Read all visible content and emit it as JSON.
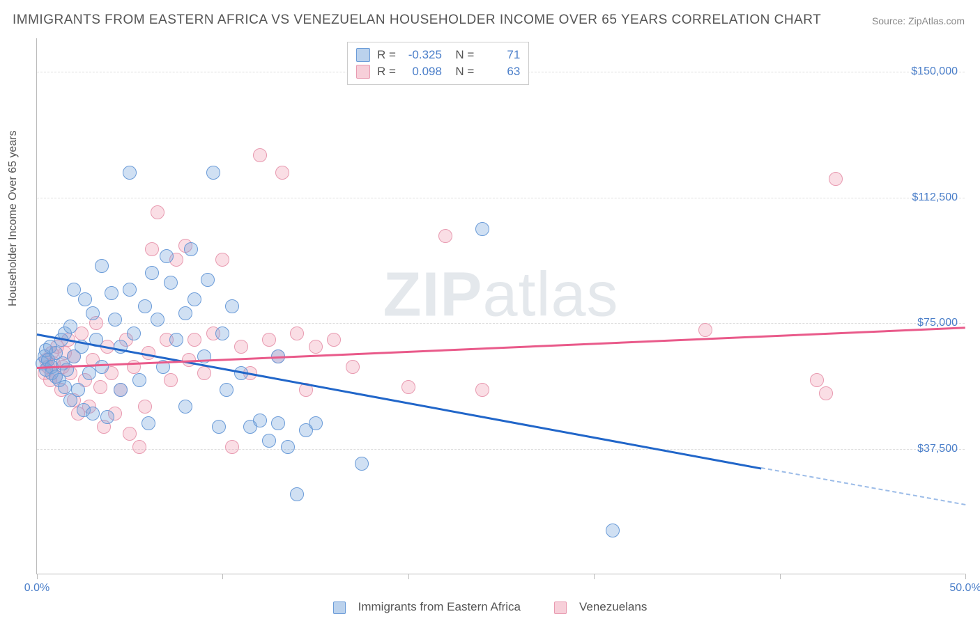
{
  "title": "IMMIGRANTS FROM EASTERN AFRICA VS VENEZUELAN HOUSEHOLDER INCOME OVER 65 YEARS CORRELATION CHART",
  "source": "Source: ZipAtlas.com",
  "ylabel": "Householder Income Over 65 years",
  "watermark_a": "ZIP",
  "watermark_b": "atlas",
  "chart": {
    "type": "scatter",
    "x_range": [
      0,
      50
    ],
    "y_range": [
      0,
      160000
    ],
    "x_ticks": [
      0,
      10,
      20,
      30,
      40,
      50
    ],
    "x_tick_labels": {
      "0": "0.0%",
      "50": "50.0%"
    },
    "y_gridlines": [
      37500,
      75000,
      112500,
      150000
    ],
    "y_tick_labels": [
      "$37,500",
      "$75,000",
      "$112,500",
      "$150,000"
    ],
    "background_color": "#ffffff",
    "grid_color": "#dddddd",
    "axis_color": "#bbbbbb",
    "tick_label_color": "#4a7ec9",
    "title_color": "#555555",
    "marker_radius": 10
  },
  "series": [
    {
      "name": "Immigrants from Eastern Africa",
      "color_fill": "rgba(120,165,220,0.35)",
      "color_stroke": "#6a9bd8",
      "line_color": "#2166c9",
      "R": "-0.325",
      "N": "71",
      "trend": {
        "x0": 0,
        "y0": 72000,
        "x1": 39,
        "y1": 32000,
        "dash_x1": 50,
        "dash_y1": 21000
      },
      "points": [
        [
          0.3,
          63000
        ],
        [
          0.4,
          65000
        ],
        [
          0.5,
          67000
        ],
        [
          0.5,
          61000
        ],
        [
          0.6,
          64000
        ],
        [
          0.7,
          68000
        ],
        [
          0.8,
          62000
        ],
        [
          0.8,
          60000
        ],
        [
          1.0,
          59000
        ],
        [
          1.0,
          66000
        ],
        [
          1.2,
          58000
        ],
        [
          1.3,
          70000
        ],
        [
          1.4,
          63000
        ],
        [
          1.5,
          56000
        ],
        [
          1.5,
          72000
        ],
        [
          1.6,
          61000
        ],
        [
          1.8,
          74000
        ],
        [
          1.8,
          52000
        ],
        [
          2.0,
          65000
        ],
        [
          2.0,
          85000
        ],
        [
          2.2,
          55000
        ],
        [
          2.4,
          68000
        ],
        [
          2.5,
          49000
        ],
        [
          2.6,
          82000
        ],
        [
          2.8,
          60000
        ],
        [
          3.0,
          78000
        ],
        [
          3.0,
          48000
        ],
        [
          3.2,
          70000
        ],
        [
          3.5,
          62000
        ],
        [
          3.5,
          92000
        ],
        [
          3.8,
          47000
        ],
        [
          4.0,
          84000
        ],
        [
          4.2,
          76000
        ],
        [
          4.5,
          55000
        ],
        [
          4.5,
          68000
        ],
        [
          5.0,
          120000
        ],
        [
          5.0,
          85000
        ],
        [
          5.2,
          72000
        ],
        [
          5.5,
          58000
        ],
        [
          5.8,
          80000
        ],
        [
          6.0,
          45000
        ],
        [
          6.2,
          90000
        ],
        [
          6.5,
          76000
        ],
        [
          6.8,
          62000
        ],
        [
          7.0,
          95000
        ],
        [
          7.2,
          87000
        ],
        [
          7.5,
          70000
        ],
        [
          8.0,
          78000
        ],
        [
          8.0,
          50000
        ],
        [
          8.3,
          97000
        ],
        [
          8.5,
          82000
        ],
        [
          9.0,
          65000
        ],
        [
          9.2,
          88000
        ],
        [
          9.5,
          120000
        ],
        [
          10.0,
          72000
        ],
        [
          10.2,
          55000
        ],
        [
          10.5,
          80000
        ],
        [
          11.0,
          60000
        ],
        [
          11.5,
          44000
        ],
        [
          12.0,
          46000
        ],
        [
          12.5,
          40000
        ],
        [
          13.0,
          45000
        ],
        [
          13.0,
          65000
        ],
        [
          13.5,
          38000
        ],
        [
          14.0,
          24000
        ],
        [
          14.5,
          43000
        ],
        [
          15.0,
          45000
        ],
        [
          17.5,
          33000
        ],
        [
          24.0,
          103000
        ],
        [
          31.0,
          13000
        ],
        [
          9.8,
          44000
        ]
      ]
    },
    {
      "name": "Venezuelans",
      "color_fill": "rgba(240,160,180,0.35)",
      "color_stroke": "#e89ab0",
      "line_color": "#e95a8a",
      "R": "0.098",
      "N": "63",
      "trend": {
        "x0": 0,
        "y0": 62000,
        "x1": 50,
        "y1": 74000
      },
      "points": [
        [
          0.4,
          60000
        ],
        [
          0.5,
          64000
        ],
        [
          0.6,
          62000
        ],
        [
          0.7,
          58000
        ],
        [
          0.8,
          66000
        ],
        [
          0.9,
          63000
        ],
        [
          1.0,
          59000
        ],
        [
          1.1,
          68000
        ],
        [
          1.3,
          55000
        ],
        [
          1.4,
          62000
        ],
        [
          1.5,
          66000
        ],
        [
          1.7,
          70000
        ],
        [
          1.8,
          60000
        ],
        [
          2.0,
          52000
        ],
        [
          2.0,
          65000
        ],
        [
          2.2,
          48000
        ],
        [
          2.4,
          72000
        ],
        [
          2.6,
          58000
        ],
        [
          2.8,
          50000
        ],
        [
          3.0,
          64000
        ],
        [
          3.2,
          75000
        ],
        [
          3.4,
          56000
        ],
        [
          3.6,
          44000
        ],
        [
          3.8,
          68000
        ],
        [
          4.0,
          60000
        ],
        [
          4.2,
          48000
        ],
        [
          4.5,
          55000
        ],
        [
          4.8,
          70000
        ],
        [
          5.0,
          42000
        ],
        [
          5.2,
          62000
        ],
        [
          5.5,
          38000
        ],
        [
          5.8,
          50000
        ],
        [
          6.0,
          66000
        ],
        [
          6.2,
          97000
        ],
        [
          6.5,
          108000
        ],
        [
          7.0,
          70000
        ],
        [
          7.2,
          58000
        ],
        [
          7.5,
          94000
        ],
        [
          8.0,
          98000
        ],
        [
          8.2,
          64000
        ],
        [
          8.5,
          70000
        ],
        [
          9.0,
          60000
        ],
        [
          9.5,
          72000
        ],
        [
          10.0,
          94000
        ],
        [
          10.5,
          38000
        ],
        [
          11.0,
          68000
        ],
        [
          11.5,
          60000
        ],
        [
          12.0,
          125000
        ],
        [
          12.5,
          70000
        ],
        [
          13.0,
          65000
        ],
        [
          13.2,
          120000
        ],
        [
          14.0,
          72000
        ],
        [
          14.5,
          55000
        ],
        [
          15.0,
          68000
        ],
        [
          16.0,
          70000
        ],
        [
          17.0,
          62000
        ],
        [
          20.0,
          56000
        ],
        [
          22.0,
          101000
        ],
        [
          24.0,
          55000
        ],
        [
          36.0,
          73000
        ],
        [
          42.0,
          58000
        ],
        [
          42.5,
          54000
        ],
        [
          43.0,
          118000
        ]
      ]
    }
  ],
  "legend_bottom": [
    {
      "swatch": "blue",
      "label": "Immigrants from Eastern Africa"
    },
    {
      "swatch": "pink",
      "label": "Venezuelans"
    }
  ]
}
